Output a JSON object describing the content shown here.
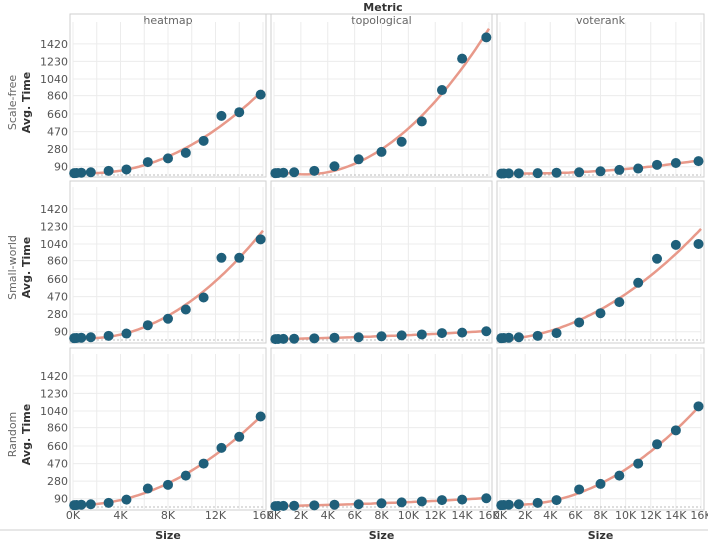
{
  "chart_data": {
    "type": "scatter",
    "title": "Metric",
    "xlabel": "Size",
    "ylabel": "Avg. Time",
    "columns": [
      "heatmap",
      "topological",
      "voterank"
    ],
    "rows": [
      "Scale-free",
      "Small-world",
      "Random"
    ],
    "ylim": [
      0,
      1570
    ],
    "yticks": [
      90,
      280,
      470,
      660,
      860,
      1040,
      1230,
      1420
    ],
    "grid": true,
    "series_color": "#1f5f7a",
    "trend_color": "#e8998a",
    "panels": [
      {
        "row": "Scale-free",
        "column": "heatmap",
        "x": [
          100,
          300,
          700,
          1500,
          3000,
          4500,
          6300,
          8000,
          9500,
          11000,
          12500,
          14000,
          15800
        ],
        "y": [
          20,
          22,
          25,
          30,
          45,
          60,
          140,
          180,
          240,
          370,
          640,
          680,
          870
        ]
      },
      {
        "row": "Scale-free",
        "column": "topological",
        "x": [
          100,
          300,
          700,
          1500,
          3000,
          4500,
          6300,
          8000,
          9500,
          11000,
          12500,
          14000,
          15800
        ],
        "y": [
          20,
          22,
          25,
          30,
          45,
          95,
          170,
          250,
          360,
          580,
          920,
          1260,
          1490
        ]
      },
      {
        "row": "Scale-free",
        "column": "voterank",
        "x": [
          100,
          300,
          700,
          1500,
          3000,
          4500,
          6300,
          8000,
          9500,
          11000,
          12500,
          14000,
          15800
        ],
        "y": [
          15,
          16,
          17,
          18,
          20,
          25,
          30,
          40,
          55,
          70,
          110,
          130,
          150
        ]
      },
      {
        "row": "Small-world",
        "column": "heatmap",
        "x": [
          100,
          300,
          700,
          1500,
          3000,
          4500,
          6300,
          8000,
          9500,
          11000,
          12500,
          14000,
          15800
        ],
        "y": [
          20,
          22,
          25,
          30,
          45,
          70,
          160,
          230,
          330,
          460,
          890,
          890,
          1090
        ]
      },
      {
        "row": "Small-world",
        "column": "topological",
        "x": [
          100,
          300,
          700,
          1500,
          3000,
          4500,
          6300,
          8000,
          9500,
          11000,
          12500,
          14000,
          15800
        ],
        "y": [
          10,
          11,
          12,
          14,
          18,
          25,
          30,
          40,
          50,
          60,
          75,
          80,
          95
        ]
      },
      {
        "row": "Small-world",
        "column": "voterank",
        "x": [
          100,
          300,
          700,
          1500,
          3000,
          4500,
          6300,
          8000,
          9500,
          11000,
          12500,
          14000,
          15800
        ],
        "y": [
          20,
          22,
          25,
          30,
          45,
          75,
          190,
          290,
          410,
          620,
          880,
          1030,
          1040
        ]
      },
      {
        "row": "Random",
        "column": "heatmap",
        "x": [
          100,
          300,
          700,
          1500,
          3000,
          4500,
          6300,
          8000,
          9500,
          11000,
          12500,
          14000,
          15800
        ],
        "y": [
          20,
          22,
          25,
          30,
          45,
          80,
          200,
          240,
          340,
          470,
          640,
          760,
          980
        ]
      },
      {
        "row": "Random",
        "column": "topological",
        "x": [
          100,
          300,
          700,
          1500,
          3000,
          4500,
          6300,
          8000,
          9500,
          11000,
          12500,
          14000,
          15800
        ],
        "y": [
          10,
          11,
          12,
          14,
          18,
          25,
          30,
          40,
          50,
          60,
          75,
          80,
          95
        ]
      },
      {
        "row": "Random",
        "column": "voterank",
        "x": [
          100,
          300,
          700,
          1500,
          3000,
          4500,
          6300,
          8000,
          9500,
          11000,
          12500,
          14000,
          15800
        ],
        "y": [
          20,
          22,
          25,
          30,
          45,
          75,
          190,
          250,
          340,
          470,
          680,
          830,
          1090
        ]
      }
    ],
    "xticks": [
      "0K",
      "4K",
      "8K",
      "12K",
      "16K"
    ],
    "xticks_dense": [
      "0K",
      "2K",
      "4K",
      "6K",
      "8K",
      "10K",
      "12K",
      "14K",
      "16K"
    ]
  }
}
